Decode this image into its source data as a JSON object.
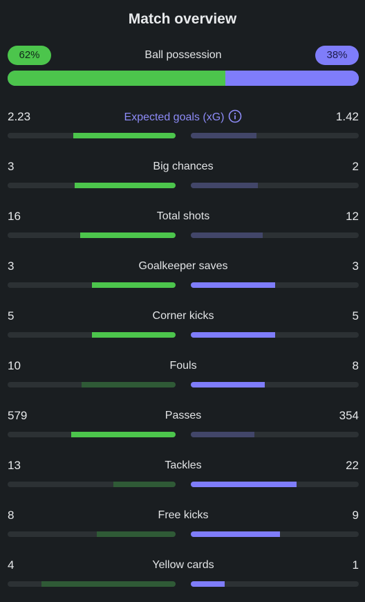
{
  "title": "Match overview",
  "possession": {
    "label": "Ball possession",
    "home": 62,
    "away": 38,
    "home_label": "62%",
    "away_label": "38%"
  },
  "colors": {
    "home": "#4cc54c",
    "home_dim": "#2f5a36",
    "away": "#7f7dfa",
    "away_dim": "#424669",
    "track": "#2c3134",
    "background": "#1a1e21"
  },
  "stats": [
    {
      "label": "Expected goals (xG)",
      "home": "2.23",
      "away": "1.42",
      "home_fill": 0.61,
      "away_fill": 0.39,
      "highlight": "home",
      "info_icon": "info-icon"
    },
    {
      "label": "Big chances",
      "home": "3",
      "away": "2",
      "home_fill": 0.6,
      "away_fill": 0.4,
      "highlight": "home"
    },
    {
      "label": "Total shots",
      "home": "16",
      "away": "12",
      "home_fill": 0.57,
      "away_fill": 0.43,
      "highlight": "home"
    },
    {
      "label": "Goalkeeper saves",
      "home": "3",
      "away": "3",
      "home_fill": 0.5,
      "away_fill": 0.5,
      "highlight": "both"
    },
    {
      "label": "Corner kicks",
      "home": "5",
      "away": "5",
      "home_fill": 0.5,
      "away_fill": 0.5,
      "highlight": "both"
    },
    {
      "label": "Fouls",
      "home": "10",
      "away": "8",
      "home_fill": 0.56,
      "away_fill": 0.44,
      "highlight": "away"
    },
    {
      "label": "Passes",
      "home": "579",
      "away": "354",
      "home_fill": 0.62,
      "away_fill": 0.38,
      "highlight": "home"
    },
    {
      "label": "Tackles",
      "home": "13",
      "away": "22",
      "home_fill": 0.37,
      "away_fill": 0.63,
      "highlight": "away"
    },
    {
      "label": "Free kicks",
      "home": "8",
      "away": "9",
      "home_fill": 0.47,
      "away_fill": 0.53,
      "highlight": "away"
    },
    {
      "label": "Yellow cards",
      "home": "4",
      "away": "1",
      "home_fill": 0.8,
      "away_fill": 0.2,
      "highlight": "away"
    }
  ]
}
